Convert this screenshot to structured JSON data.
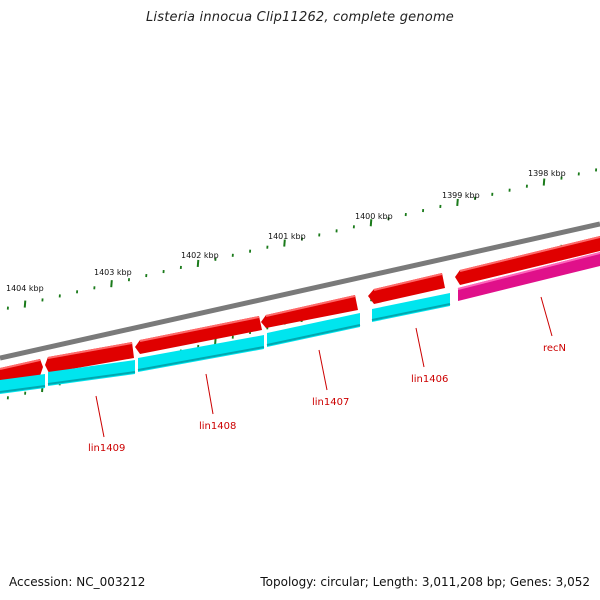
{
  "title": "Listeria innocua Clip11262, complete genome",
  "accession": "Accession: NC_003212",
  "summary": "Topology: circular; Length: 3,011,208 bp; Genes: 3,052",
  "ruler_ticks": [
    "1404 kbp",
    "1403 kbp",
    "1402 kbp",
    "1401 kbp",
    "1400 kbp",
    "1399 kbp",
    "1398 kbp"
  ],
  "genes": [
    {
      "label": "lin1409",
      "color": "#cc0000",
      "track": "cyan"
    },
    {
      "label": "lin1408",
      "color": "#cc0000",
      "track": "cyan"
    },
    {
      "label": "lin1407",
      "color": "#cc0000",
      "track": "cyan"
    },
    {
      "label": "lin1406",
      "color": "#cc0000",
      "track": "cyan"
    },
    {
      "label": "recN",
      "color": "#cc0000",
      "track": "magenta"
    }
  ],
  "colors": {
    "backbone": "#7a7a7a",
    "forward_gene": "#e00000",
    "reverse_gene": "#00e5ee",
    "recN_gene": "#e0108a",
    "tick": "#1a7a1a",
    "gene_label": "#cc0000"
  }
}
